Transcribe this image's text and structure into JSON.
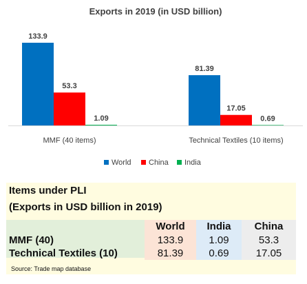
{
  "chart_data": {
    "type": "bar",
    "title": "Exports in 2019 (in USD billion)",
    "categories": [
      "MMF (40 items)",
      "Technical Textiles (10 items)"
    ],
    "series": [
      {
        "name": "World",
        "color": "#0070C0",
        "values": [
          133.9,
          81.39
        ],
        "labels": [
          "133.9",
          "81.39"
        ]
      },
      {
        "name": "China",
        "color": "#FF0000",
        "values": [
          53.3,
          17.05
        ],
        "labels": [
          "53.3",
          "17.05"
        ]
      },
      {
        "name": "India",
        "color": "#00B050",
        "values": [
          1.09,
          0.69
        ],
        "labels": [
          "1.09",
          "0.69"
        ]
      }
    ],
    "ylim": [
      0,
      133.9
    ],
    "grid": false,
    "legend": "bottom"
  },
  "pli_table": {
    "title_line1": "Items under PLI",
    "title_line2": "(Exports in USD billion in 2019)",
    "columns": [
      "World",
      "India",
      "China"
    ],
    "rows": [
      {
        "label": "MMF (40)",
        "values": [
          "133.9",
          "1.09",
          "53.3"
        ]
      },
      {
        "label": "Technical Textiles (10)",
        "values": [
          "81.39",
          "0.69",
          "17.05"
        ]
      }
    ],
    "source": "Source: Trade map database"
  }
}
